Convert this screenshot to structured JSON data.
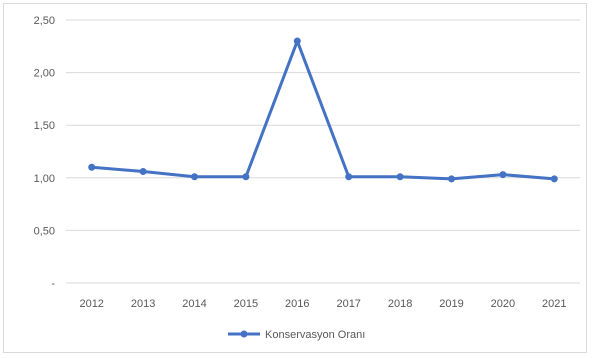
{
  "chart_data": {
    "type": "line",
    "categories": [
      "2012",
      "2013",
      "2014",
      "2015",
      "2016",
      "2017",
      "2018",
      "2019",
      "2020",
      "2021"
    ],
    "series": [
      {
        "name": "Konservasyon Oranı",
        "values": [
          1.1,
          1.06,
          1.01,
          1.01,
          2.3,
          1.01,
          1.01,
          0.99,
          1.03,
          0.99
        ],
        "color": "#4472c4"
      }
    ],
    "ylim": [
      0,
      2.5
    ],
    "yticks": [
      0,
      0.5,
      1.0,
      1.5,
      2.0,
      2.5
    ],
    "ytick_labels": [
      "-",
      "0,50",
      "1,00",
      "1,50",
      "2,00",
      "2,50"
    ],
    "grid": true,
    "legend_position": "bottom",
    "title": "",
    "xlabel": "",
    "ylabel": ""
  }
}
